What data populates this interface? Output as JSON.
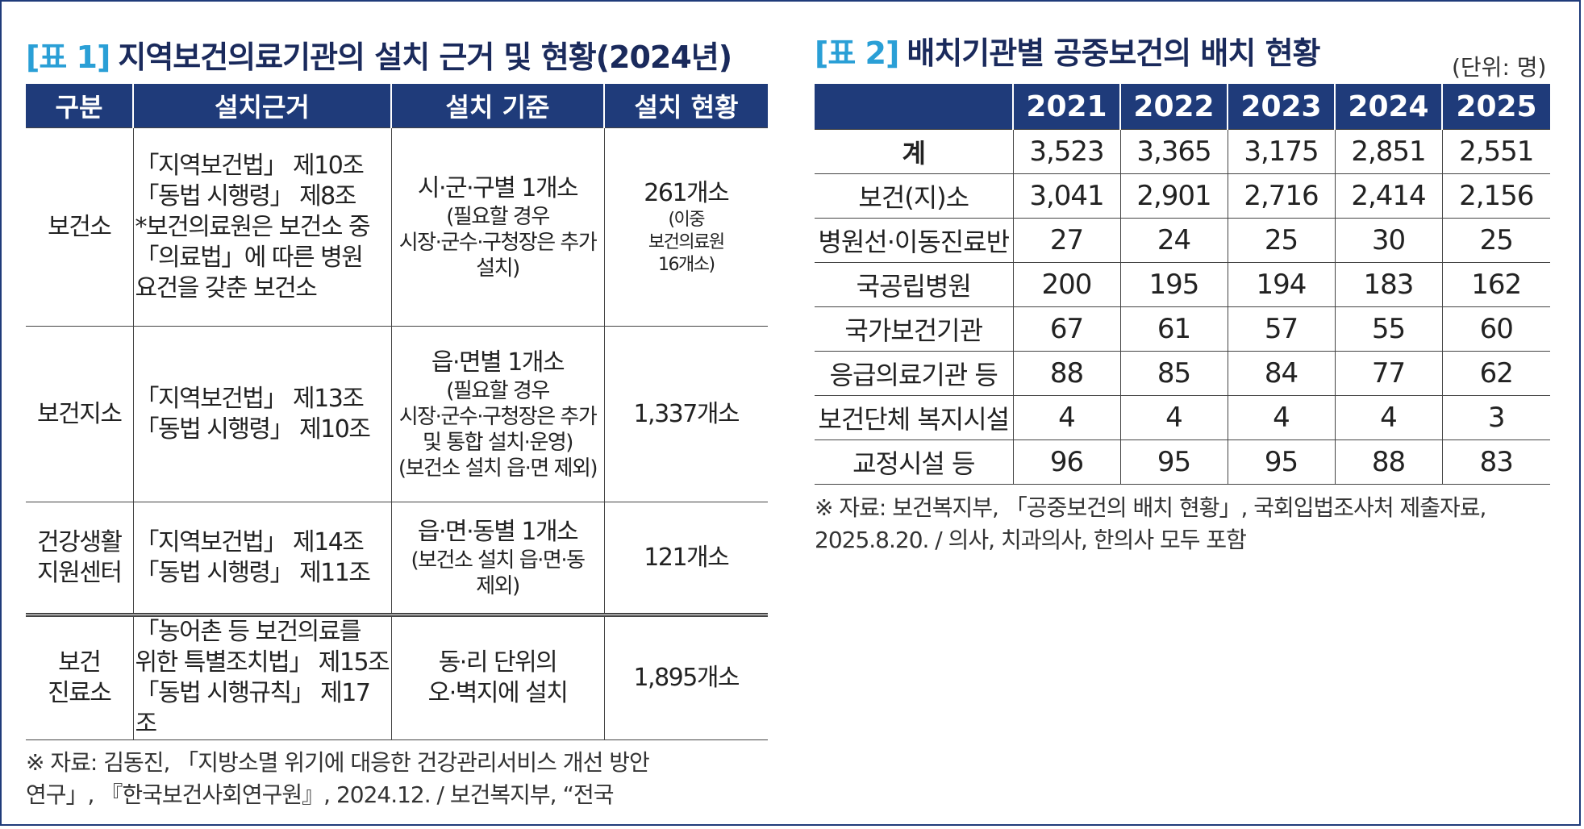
{
  "table1": {
    "tag": "[표 1]",
    "title": "지역보건의료기관의 설치 근거 및 현황(2024년)",
    "headers": [
      "구분",
      "설치근거",
      "설치 기준",
      "설치 현황"
    ],
    "rows": [
      {
        "category": "보건소",
        "basis": "「지역보건법」 제10조\n「동법 시행령」 제8조\n*보건의료원은 보건소 중\n「의료법」에 따른 병원\n요건을 갖춘 보건소",
        "criteria_main": "시·군·구별 1개소",
        "criteria_sub": "(필요할 경우\n시장·군수·구청장은 추가\n설치)",
        "status": "261개소",
        "status_sub": "(이중\n보건의료원\n16개소)"
      },
      {
        "category": "보건지소",
        "basis": "「지역보건법」 제13조\n「동법 시행령」 제10조",
        "criteria_main": "읍·면별 1개소",
        "criteria_sub": "(필요할 경우\n시장·군수·구청장은 추가\n및 통합 설치·운영)\n(보건소 설치 읍·면 제외)",
        "status": "1,337개소",
        "status_sub": ""
      },
      {
        "category": "건강생활\n지원센터",
        "basis": "「지역보건법」 제14조\n「동법 시행령」 제11조",
        "criteria_main": "읍·면·동별 1개소",
        "criteria_sub": "(보건소 설치 읍·면·동\n제외)",
        "status": "121개소",
        "status_sub": ""
      },
      {
        "category": "보건\n진료소",
        "basis": "「농어촌 등 보건의료를\n위한 특별조치법」 제15조\n「동법 시행규칙」 제17조",
        "criteria_main": "동·리 단위의\n오·벽지에 설치",
        "criteria_sub": "",
        "status": "1,895개소",
        "status_sub": ""
      }
    ],
    "note": "※  자료: 김동진, 「지방소멸 위기에 대응한 건강관리서비스 개선 방안\n     연구」, 『한국보건사회연구원』, 2024.12. / 보건복지부, “전국"
  },
  "table2": {
    "tag": "[표 2]",
    "title": "배치기관별 공중보건의 배치 현황",
    "unit": "(단위: 명)",
    "headers": [
      "",
      "2021",
      "2022",
      "2023",
      "2024",
      "2025"
    ],
    "rows": [
      {
        "label": "계",
        "values": [
          "3,523",
          "3,365",
          "3,175",
          "2,851",
          "2,551"
        ],
        "bold": true
      },
      {
        "label": "보건(지)소",
        "values": [
          "3,041",
          "2,901",
          "2,716",
          "2,414",
          "2,156"
        ]
      },
      {
        "label": "병원선·이동진료반",
        "values": [
          "27",
          "24",
          "25",
          "30",
          "25"
        ]
      },
      {
        "label": "국공립병원",
        "values": [
          "200",
          "195",
          "194",
          "183",
          "162"
        ]
      },
      {
        "label": "국가보건기관",
        "values": [
          "67",
          "61",
          "57",
          "55",
          "60"
        ]
      },
      {
        "label": "응급의료기관 등",
        "values": [
          "88",
          "85",
          "84",
          "77",
          "62"
        ]
      },
      {
        "label": "보건단체 복지시설",
        "values": [
          "4",
          "4",
          "4",
          "4",
          "3"
        ]
      },
      {
        "label": "교정시설 등",
        "values": [
          "96",
          "95",
          "95",
          "88",
          "83"
        ]
      }
    ],
    "note": "※ 자료: 보건복지부, 「공중보건의 배치 현황」, 국회입법조사처 제출자료,\n   2025.8.20. / 의사, 치과의사, 한의사 모두 포함"
  },
  "colors": {
    "header_bg": "#1f3b7a",
    "tag": "#2a9fd6",
    "title": "#1a2a5c",
    "border": "#1f3b7a"
  }
}
